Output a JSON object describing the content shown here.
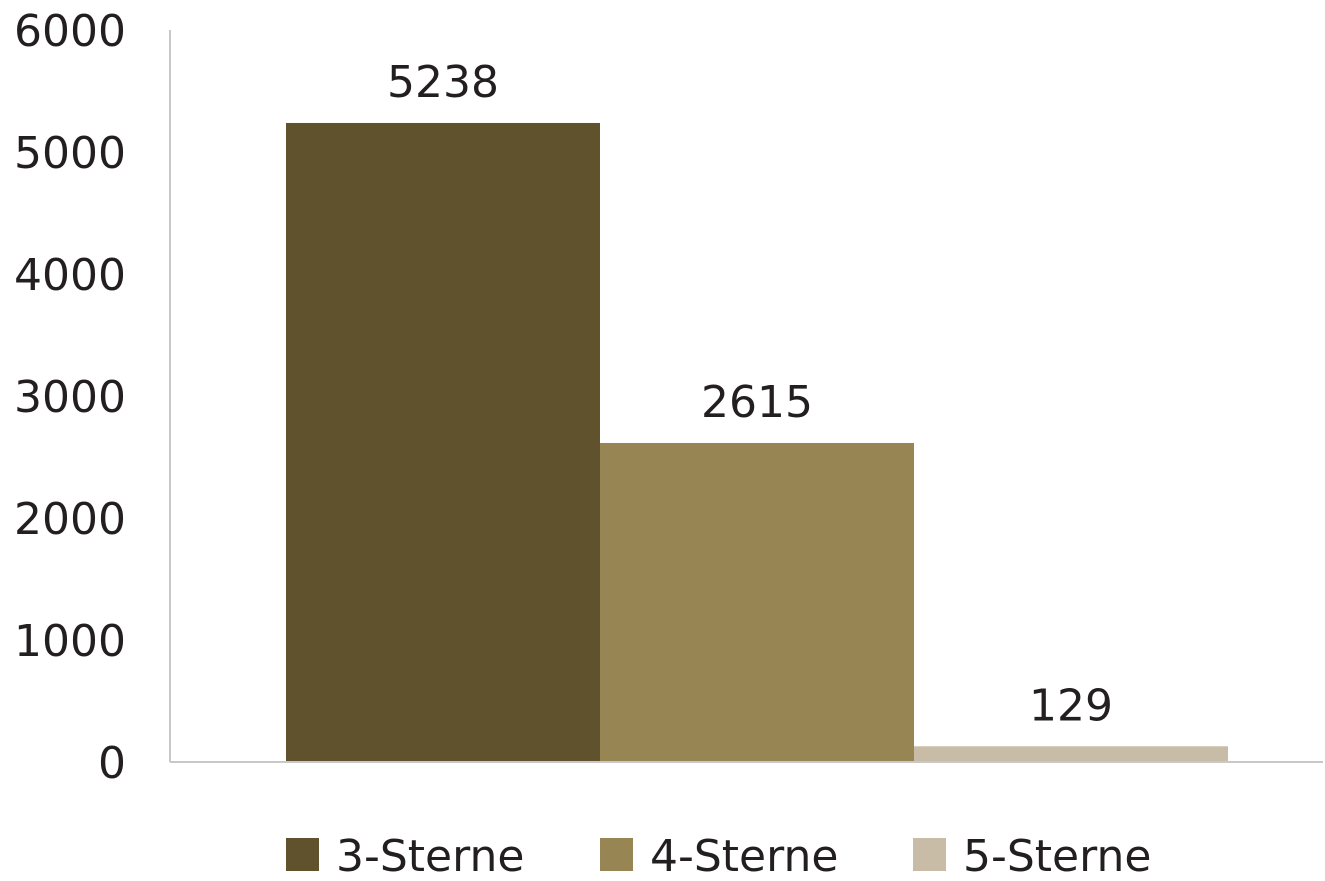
{
  "chart_data": {
    "type": "bar",
    "title": "",
    "xlabel": "",
    "ylabel": "",
    "ylim": [
      0,
      6000
    ],
    "yticks": [
      0,
      1000,
      2000,
      3000,
      4000,
      5000,
      6000
    ],
    "grid": false,
    "legend_position": "bottom",
    "series": [
      {
        "name": "3-Sterne",
        "values": [
          5238
        ],
        "color": "#61522e"
      },
      {
        "name": "4-Sterne",
        "values": [
          2615
        ],
        "color": "#988554"
      },
      {
        "name": "5-Sterne",
        "values": [
          129
        ],
        "color": "#c9bca6"
      }
    ],
    "data_labels": [
      "5238",
      "2615",
      "129"
    ],
    "axis_color": "#c8c8c8"
  }
}
